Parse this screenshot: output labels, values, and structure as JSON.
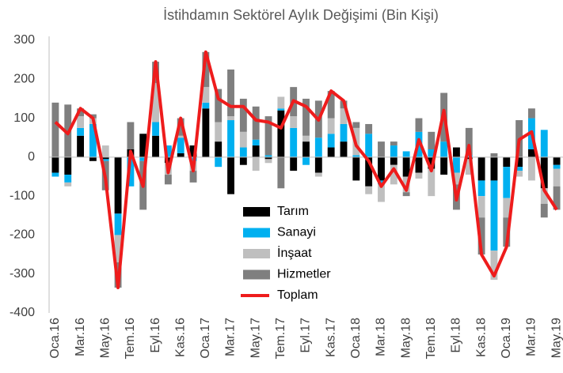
{
  "chart_data": {
    "type": "bar",
    "title": "İstihdamın Sektörel Aylık Değişimi (Bin Kişi)",
    "categories": [
      "Oca.16",
      null,
      "Mar.16",
      null,
      "May.16",
      null,
      "Tem.16",
      null,
      "Eyl.16",
      null,
      "Kas.16",
      null,
      "Oca.17",
      null,
      "Mar.17",
      null,
      "May.17",
      null,
      "Tem.17",
      null,
      "Eyl.17",
      null,
      "Kas.17",
      null,
      "Oca.18",
      null,
      "Mar.18",
      null,
      "May.18",
      null,
      "Tem.18",
      null,
      "Eyl.18",
      null,
      "Kas.18",
      null,
      "Oca.19",
      null,
      "Mar.19",
      null,
      "May.19"
    ],
    "series": [
      {
        "name": "Tarım",
        "color": "#000000",
        "values": [
          -40,
          -45,
          55,
          -10,
          -5,
          -145,
          20,
          60,
          55,
          -15,
          10,
          30,
          125,
          40,
          -95,
          -20,
          30,
          -5,
          120,
          -35,
          40,
          -40,
          25,
          40,
          -60,
          -75,
          -60,
          -20,
          -50,
          -40,
          -30,
          -45,
          25,
          -5,
          -60,
          -60,
          -25,
          -25,
          20,
          -80,
          -20
        ]
      },
      {
        "name": "Sanayi",
        "color": "#00b0f0",
        "values": [
          -10,
          -20,
          20,
          85,
          -5,
          -55,
          -75,
          -10,
          35,
          30,
          40,
          -10,
          15,
          -25,
          95,
          25,
          15,
          5,
          5,
          75,
          -20,
          50,
          35,
          45,
          5,
          60,
          -10,
          30,
          15,
          65,
          20,
          40,
          -40,
          5,
          -40,
          -180,
          -80,
          -10,
          80,
          70,
          -10
        ]
      },
      {
        "name": "İnşaat",
        "color": "#bfbfbf",
        "values": [
          0,
          -10,
          30,
          15,
          30,
          -70,
          0,
          0,
          100,
          -30,
          5,
          -25,
          40,
          50,
          10,
          40,
          -35,
          -10,
          30,
          30,
          15,
          -10,
          40,
          40,
          70,
          -20,
          -45,
          -50,
          -40,
          -15,
          -70,
          0,
          -30,
          -40,
          -55,
          -75,
          -50,
          -15,
          -60,
          -40,
          -45
        ]
      },
      {
        "name": "Hizmetler",
        "color": "#7f7f7f",
        "values": [
          140,
          135,
          20,
          10,
          -75,
          -65,
          70,
          -125,
          55,
          -25,
          45,
          -30,
          90,
          85,
          120,
          85,
          85,
          100,
          -80,
          75,
          95,
          95,
          70,
          20,
          15,
          25,
          40,
          10,
          -10,
          35,
          45,
          125,
          -65,
          70,
          -95,
          10,
          -75,
          95,
          25,
          -35,
          -60
        ]
      },
      {
        "name": "Toplam",
        "color": "#ee1c1c",
        "type": "line",
        "values": [
          90,
          60,
          125,
          100,
          -55,
          -335,
          15,
          -75,
          245,
          -40,
          100,
          -35,
          270,
          150,
          130,
          130,
          95,
          90,
          75,
          145,
          130,
          95,
          170,
          145,
          30,
          -10,
          -75,
          -30,
          -85,
          45,
          -35,
          120,
          -110,
          30,
          -250,
          -305,
          -230,
          45,
          65,
          -85,
          -135
        ]
      }
    ],
    "ylim": [
      -400,
      300
    ],
    "yticks": [
      -400,
      -300,
      -200,
      -100,
      0,
      100,
      200,
      300
    ]
  }
}
